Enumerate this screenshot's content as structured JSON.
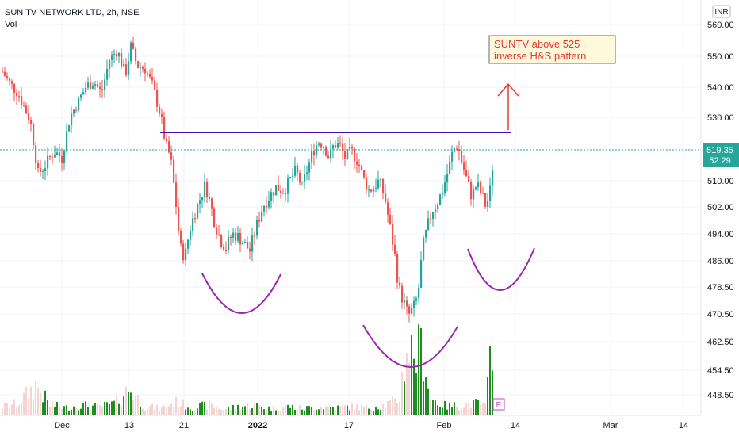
{
  "header": {
    "title": "SUN TV NETWORK LTD, 2h, NSE",
    "volume_label": "Vol"
  },
  "currency_badge": "INR",
  "price_label": {
    "value": "519.35",
    "countdown": "52:29",
    "color": "#26a69a"
  },
  "event_marker": "E",
  "annotation": {
    "line1": "SUNTV above 525",
    "line2": "inverse H&S pattern"
  },
  "colors": {
    "up": "#26a69a",
    "down": "#ef5350",
    "volume_up": "#1e8c1e",
    "resistance": "#4a0fa8",
    "pattern_curve": "#9c27b0",
    "arrow": "#e53935"
  },
  "chart_data": {
    "type": "candlestick",
    "title": "SUN TV NETWORK LTD, 2h, NSE",
    "y_axis": {
      "side": "right",
      "ticks": [
        "560.00",
        "550.00",
        "540.00",
        "530.00",
        "519.35",
        "510.00",
        "502.00",
        "494.00",
        "486.00",
        "478.50",
        "470.50",
        "462.50",
        "454.50",
        "448.50"
      ]
    },
    "x_axis": {
      "tick_labels": [
        "Dec",
        "13",
        "21",
        "2022",
        "17",
        "Feb",
        "14",
        "Mar",
        "14"
      ]
    },
    "price_path": [
      [
        0,
        545
      ],
      [
        10,
        541
      ],
      [
        20,
        538
      ],
      [
        28,
        533
      ],
      [
        35,
        529
      ],
      [
        45,
        512
      ],
      [
        55,
        515
      ],
      [
        65,
        519
      ],
      [
        75,
        517
      ],
      [
        85,
        530
      ],
      [
        95,
        535
      ],
      [
        105,
        540
      ],
      [
        115,
        542
      ],
      [
        125,
        538
      ],
      [
        135,
        549
      ],
      [
        145,
        552
      ],
      [
        155,
        544
      ],
      [
        162,
        553
      ],
      [
        170,
        547
      ],
      [
        180,
        546
      ],
      [
        190,
        540
      ],
      [
        200,
        530
      ],
      [
        206,
        521
      ],
      [
        212,
        517
      ],
      [
        218,
        505
      ],
      [
        224,
        490
      ],
      [
        230,
        487
      ],
      [
        236,
        495
      ],
      [
        242,
        500
      ],
      [
        250,
        505
      ],
      [
        256,
        509
      ],
      [
        262,
        503
      ],
      [
        268,
        497
      ],
      [
        275,
        492
      ],
      [
        282,
        490
      ],
      [
        290,
        494
      ],
      [
        298,
        493
      ],
      [
        305,
        491
      ],
      [
        312,
        489
      ],
      [
        320,
        496
      ],
      [
        328,
        502
      ],
      [
        336,
        505
      ],
      [
        345,
        508
      ],
      [
        355,
        507
      ],
      [
        362,
        510
      ],
      [
        370,
        513
      ],
      [
        378,
        508
      ],
      [
        385,
        514
      ],
      [
        392,
        519
      ],
      [
        398,
        522
      ],
      [
        405,
        521
      ],
      [
        412,
        517
      ],
      [
        418,
        521
      ],
      [
        425,
        521
      ],
      [
        432,
        517
      ],
      [
        440,
        519
      ],
      [
        448,
        516
      ],
      [
        455,
        511
      ],
      [
        462,
        507
      ],
      [
        468,
        508
      ],
      [
        475,
        510
      ],
      [
        482,
        505
      ],
      [
        488,
        497
      ],
      [
        494,
        489
      ],
      [
        500,
        478
      ],
      [
        506,
        474
      ],
      [
        512,
        470
      ],
      [
        518,
        472
      ],
      [
        524,
        476
      ],
      [
        530,
        490
      ],
      [
        536,
        496
      ],
      [
        542,
        501
      ],
      [
        548,
        503
      ],
      [
        555,
        507
      ],
      [
        562,
        513
      ],
      [
        568,
        519
      ],
      [
        574,
        521
      ],
      [
        580,
        515
      ],
      [
        586,
        510
      ],
      [
        592,
        505
      ],
      [
        598,
        509
      ],
      [
        604,
        506
      ],
      [
        610,
        502
      ],
      [
        615,
        507
      ],
      [
        620,
        519.35
      ]
    ],
    "volume_profile": [
      [
        0,
        12
      ],
      [
        20,
        16
      ],
      [
        42,
        40
      ],
      [
        60,
        14
      ],
      [
        80,
        10
      ],
      [
        100,
        14
      ],
      [
        120,
        11
      ],
      [
        140,
        15
      ],
      [
        160,
        35
      ],
      [
        180,
        12
      ],
      [
        200,
        9
      ],
      [
        220,
        18
      ],
      [
        240,
        10
      ],
      [
        260,
        14
      ],
      [
        280,
        8
      ],
      [
        300,
        12
      ],
      [
        320,
        13
      ],
      [
        340,
        9
      ],
      [
        360,
        12
      ],
      [
        380,
        9
      ],
      [
        400,
        12
      ],
      [
        420,
        10
      ],
      [
        440,
        12
      ],
      [
        460,
        10
      ],
      [
        480,
        13
      ],
      [
        500,
        20
      ],
      [
        510,
        90
      ],
      [
        520,
        80
      ],
      [
        530,
        90
      ],
      [
        540,
        22
      ],
      [
        560,
        12
      ],
      [
        580,
        14
      ],
      [
        600,
        16
      ],
      [
        610,
        12
      ],
      [
        618,
        110
      ]
    ],
    "resistance_level": {
      "price": 525,
      "x_start_index": 200,
      "x_end_index": 643
    },
    "pattern": "inverse head and shoulders",
    "target_arrow": {
      "from_price": 525,
      "to_price": 541
    }
  }
}
